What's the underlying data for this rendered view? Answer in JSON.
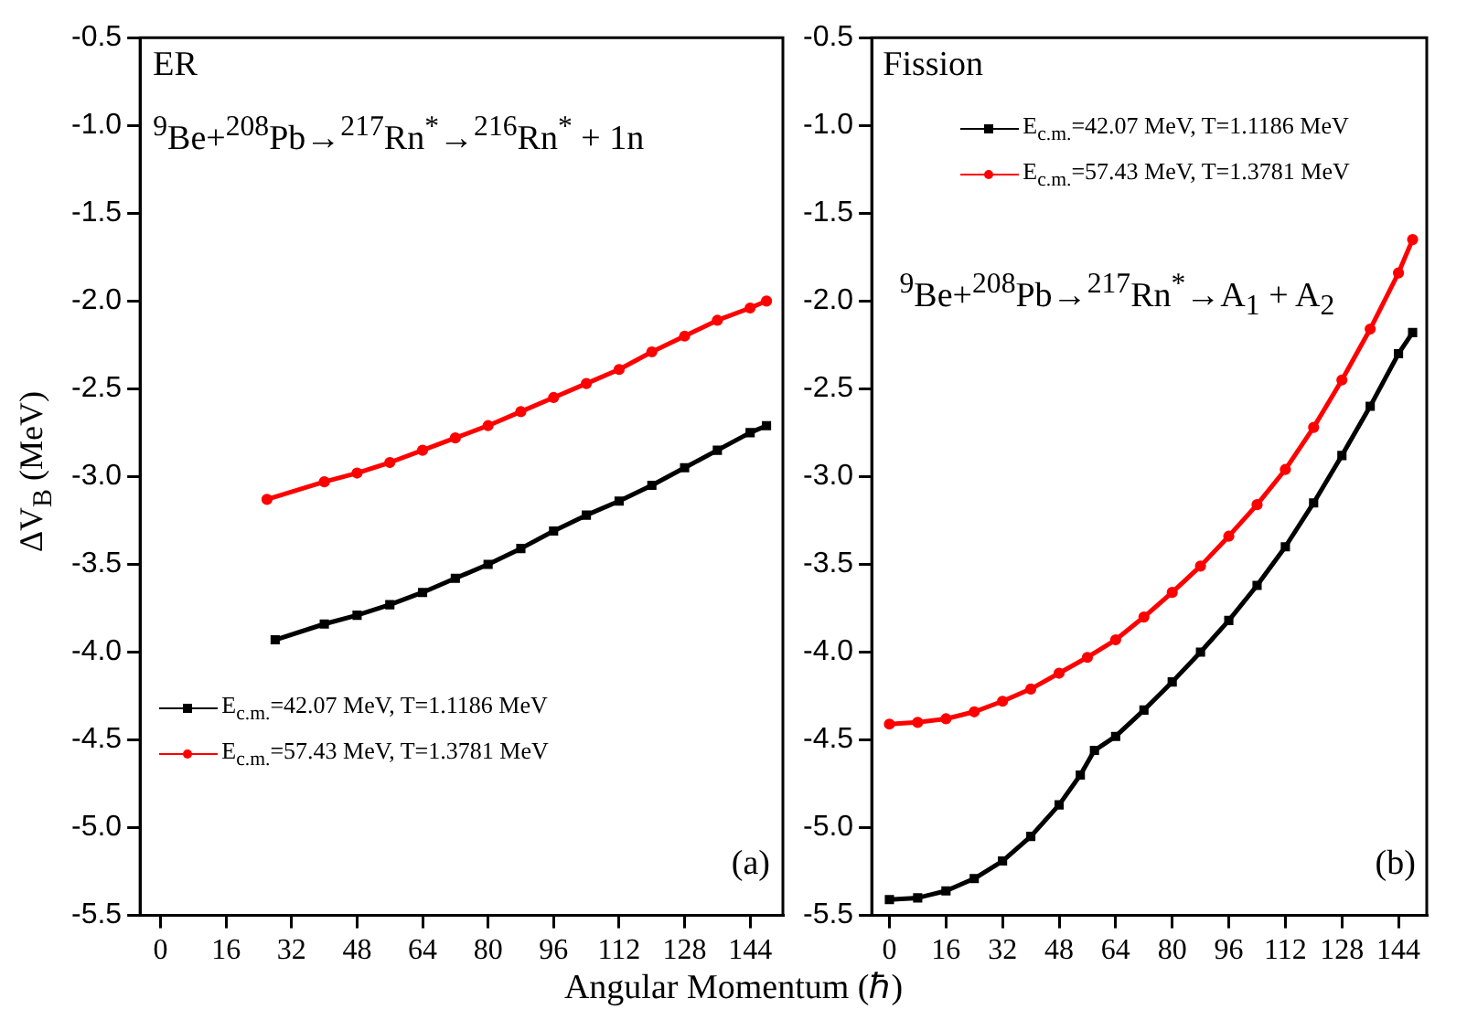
{
  "chart_data": [
    {
      "type": "line",
      "ylabel": "ΔV$_{B}$ (MeV)",
      "xlabel": "Angular Momentum (ℏ)",
      "annotations": [
        "ER",
        "$^{9}$Be+$^{208}$Pb→$^{217}$Rn$^{*}$→$^{216}$Rn$^{*}$ + 1n",
        "(a)"
      ],
      "xlim": [
        -5,
        152
      ],
      "xticks": [
        0,
        16,
        32,
        48,
        64,
        80,
        96,
        112,
        128,
        144
      ],
      "ylim": [
        -5.5,
        -0.5
      ],
      "yticks": [
        {
          "value": -5.5,
          "label": "-5.5"
        },
        {
          "value": -5,
          "label": "-5.0"
        },
        {
          "value": -4.5,
          "label": "-4.5"
        },
        {
          "value": -4,
          "label": "-4.0"
        },
        {
          "value": -3.5,
          "label": "-3.5"
        },
        {
          "value": -3,
          "label": "-3.0"
        },
        {
          "value": -2.5,
          "label": "-2.5"
        },
        {
          "value": -2,
          "label": "-2.0"
        },
        {
          "value": -1.5,
          "label": "-1.5"
        },
        {
          "value": -1,
          "label": "-1.0"
        },
        {
          "value": -0.5,
          "label": "-0.5"
        }
      ],
      "legend": "left",
      "grid": false,
      "series": [
        {
          "name": "E$_{c.m.}$=42.07 MeV, T=1.1186 MeV",
          "color": "#000000",
          "marker": "square",
          "x": [
            28,
            40,
            48,
            56,
            64,
            72,
            80,
            88,
            96,
            104,
            112,
            120,
            128,
            136,
            144,
            148
          ],
          "values": [
            -3.93,
            -3.84,
            -3.79,
            -3.73,
            -3.66,
            -3.58,
            -3.5,
            -3.41,
            -3.31,
            -3.22,
            -3.14,
            -3.05,
            -2.95,
            -2.85,
            -2.75,
            -2.71
          ]
        },
        {
          "name": "E$_{c.m.}$=57.43 MeV, T=1.3781 MeV",
          "color": "#ff0000",
          "marker": "circle",
          "x": [
            26,
            40,
            48,
            56,
            64,
            72,
            80,
            88,
            96,
            104,
            112,
            120,
            128,
            136,
            144,
            148
          ],
          "values": [
            -3.13,
            -3.03,
            -2.98,
            -2.92,
            -2.85,
            -2.78,
            -2.71,
            -2.63,
            -2.55,
            -2.47,
            -2.39,
            -2.29,
            -2.2,
            -2.11,
            -2.04,
            -2.0
          ]
        }
      ]
    },
    {
      "type": "line",
      "annotations": [
        "Fission",
        "$^{9}$Be+$^{208}$Pb→$^{217}$Rn$^{*}$→A$_{1}$ + A$_{2}$",
        "(b)"
      ],
      "xlim": [
        -5,
        152
      ],
      "xticks": [
        0,
        16,
        32,
        48,
        64,
        80,
        96,
        112,
        128,
        144
      ],
      "ylim": [
        -5.5,
        -0.5
      ],
      "yticks": [
        {
          "value": -5.5,
          "label": "-5.5"
        },
        {
          "value": -5,
          "label": "-5.0"
        },
        {
          "value": -4.5,
          "label": "-4.5"
        },
        {
          "value": -4,
          "label": "-4.0"
        },
        {
          "value": -3.5,
          "label": "-3.5"
        },
        {
          "value": -3,
          "label": "-3.0"
        },
        {
          "value": -2.5,
          "label": "-2.5"
        },
        {
          "value": -2,
          "label": "-2.0"
        },
        {
          "value": -1.5,
          "label": "-1.5"
        },
        {
          "value": -1,
          "label": "-1.0"
        },
        {
          "value": -0.5,
          "label": "-0.5"
        }
      ],
      "legend": "top",
      "grid": false,
      "series": [
        {
          "name": "E$_{c.m.}$=42.07 MeV, T=1.1186 MeV",
          "color": "#000000",
          "marker": "square",
          "x": [
            0,
            8,
            16,
            24,
            32,
            40,
            48,
            54,
            58,
            64,
            72,
            80,
            88,
            96,
            104,
            112,
            120,
            128,
            136,
            144,
            148
          ],
          "values": [
            -5.41,
            -5.4,
            -5.36,
            -5.29,
            -5.19,
            -5.05,
            -4.87,
            -4.7,
            -4.56,
            -4.48,
            -4.33,
            -4.17,
            -4.0,
            -3.82,
            -3.62,
            -3.4,
            -3.15,
            -2.88,
            -2.6,
            -2.3,
            -2.18
          ]
        },
        {
          "name": "E$_{c.m.}$=57.43 MeV, T=1.3781 MeV",
          "color": "#ff0000",
          "marker": "circle",
          "x": [
            0,
            8,
            16,
            24,
            32,
            40,
            48,
            56,
            64,
            72,
            80,
            88,
            96,
            104,
            112,
            120,
            128,
            136,
            144,
            148
          ],
          "values": [
            -4.41,
            -4.4,
            -4.38,
            -4.34,
            -4.28,
            -4.21,
            -4.12,
            -4.03,
            -3.93,
            -3.8,
            -3.66,
            -3.51,
            -3.34,
            -3.16,
            -2.96,
            -2.72,
            -2.45,
            -2.16,
            -1.84,
            -1.65
          ]
        }
      ]
    }
  ]
}
